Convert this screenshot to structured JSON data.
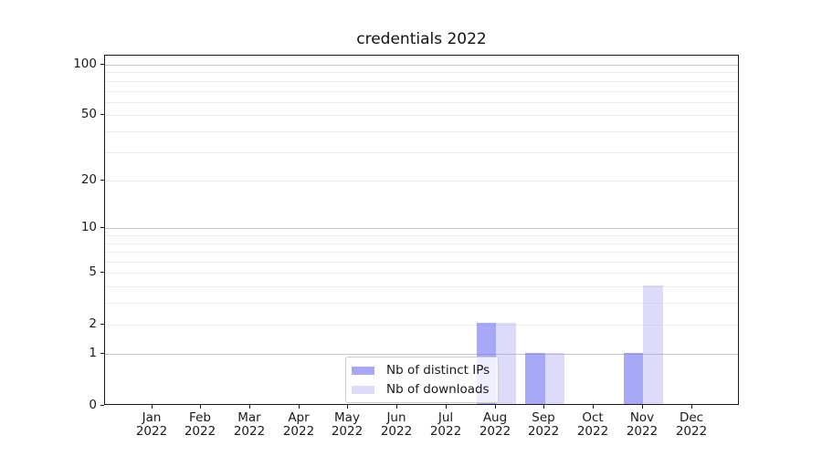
{
  "title": "credentials 2022",
  "chart_data": {
    "type": "bar",
    "categories": [
      "Jan",
      "Feb",
      "Mar",
      "Apr",
      "May",
      "Jun",
      "Jul",
      "Aug",
      "Sep",
      "Oct",
      "Nov",
      "Dec"
    ],
    "year_line": "2022",
    "series": [
      {
        "name": "Nb of distinct IPs",
        "color": "#a8a8f8",
        "fill_rgba": "rgba(121,121,244,0.65)",
        "values": [
          0,
          0,
          0,
          0,
          0,
          0,
          0,
          2,
          1,
          0,
          1,
          0
        ]
      },
      {
        "name": "Nb of downloads",
        "color": "#dcdcfa",
        "fill_rgba": "rgba(155,155,241,0.35)",
        "values": [
          0,
          0,
          0,
          0,
          0,
          0,
          0,
          2,
          1,
          0,
          4,
          0
        ]
      }
    ],
    "yscale": "log1p",
    "ylim": [
      0,
      114
    ],
    "ytick_values": [
      0,
      1,
      2,
      5,
      10,
      20,
      50,
      100
    ],
    "ytick_labels": [
      "0",
      "1",
      "2",
      "5",
      "10",
      "20",
      "50",
      "100"
    ],
    "major_grid_values": [
      1,
      10,
      100
    ],
    "minor_grid_values": [
      2,
      3,
      4,
      5,
      6,
      7,
      8,
      9,
      20,
      30,
      40,
      50,
      60,
      70,
      80,
      90
    ],
    "grid": true,
    "legend_position": "lower center-left inside plot"
  },
  "colors": {
    "major_grid": "#c6c6c6",
    "minor_grid": "#ededed",
    "spine": "#1a1a1a",
    "text": "#1a1a1a",
    "legend_border": "#cccccc",
    "legend_bg": "rgba(255,255,255,0.8)"
  }
}
